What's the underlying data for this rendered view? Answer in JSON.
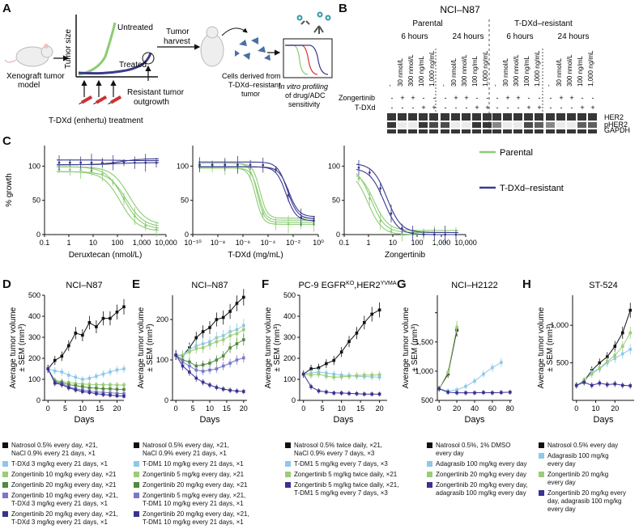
{
  "panel_labels": {
    "A": "A",
    "B": "B",
    "C": "C",
    "D": "D",
    "E": "E",
    "F": "F",
    "G": "G",
    "H": "H"
  },
  "colors": {
    "black": "#111111",
    "light_blue": "#8ec8ea",
    "light_green": "#9ccc78",
    "dark_green": "#4f8a3e",
    "med_purple": "#7a78c8",
    "dark_purple": "#3a3290",
    "parental": "#8ccc74",
    "resistant": "#3b3a8e",
    "untreated": "#8ccc74",
    "treated": "#3b3a8e"
  },
  "panelA": {
    "xenograft": "Xenograft tumor\nmodel",
    "tumor_size": "Tumor size",
    "untreated": "Untreated",
    "treated": "Treated",
    "resistant": "Resistant tumor\noutgrowth",
    "tdxd": "T-DXd (enhertu) treatment",
    "harvest": "Tumor\nharvest",
    "cells": "Cells derived from\nT-DXd–resistant\ntumor",
    "invitro": "In vitro profiling\nof drug/ADC\nsensitivity"
  },
  "panelB": {
    "title": "NCI–N87",
    "parental": "Parental",
    "resistant": "T-DXd–resistant",
    "h6": "6 hours",
    "h24": "24 hours",
    "lane_labels": [
      "-",
      "30 nmol/L",
      "300 nmol/L",
      "100 ng/mL",
      "1,000 ng/mL"
    ],
    "row_zongertinib": "Zongertinib",
    "row_tdxd": "T-DXd",
    "zong_signs": [
      "-",
      "+",
      "+",
      "-",
      "-"
    ],
    "tdxd_signs": [
      "-",
      "-",
      "-",
      "+",
      "+"
    ],
    "blot_labels": [
      "HER2",
      "pHER2",
      "GAPDH"
    ]
  },
  "panelC": {
    "ylabel": "% growth",
    "legend_parental": "Parental",
    "legend_resistant": "T-DXd–resistant",
    "plots": [
      {
        "xlabel": "Deruxtecan (nmol/L)",
        "xticks": [
          "0.1",
          "1",
          "10",
          "100",
          "1,000",
          "10,000"
        ],
        "yticks": [
          "0",
          "50",
          "100"
        ]
      },
      {
        "xlabel": "T-DXd (mg/mL)",
        "xticks": [
          "10⁻¹⁰",
          "10⁻⁸",
          "10⁻⁶",
          "10⁻⁴",
          "10⁻²",
          "10⁰"
        ],
        "yticks": [
          "0",
          "50",
          "100"
        ]
      },
      {
        "xlabel": "Zongertinib",
        "xticks": [
          "0.1",
          "1",
          "10",
          "100",
          "1,000",
          "10,000"
        ],
        "yticks": [
          "0",
          "50",
          "100"
        ]
      }
    ]
  },
  "chart_data": [
    {
      "type": "line",
      "panel": "C",
      "title": "",
      "xlabel": "Deruxtecan (nmol/L)",
      "ylabel": "% growth",
      "xscale": "log10",
      "xlim": [
        -1,
        4
      ],
      "ylim": [
        0,
        130
      ],
      "series": [
        {
          "name": "Parental",
          "top": 95,
          "bottom": 5,
          "log_ec50": 2.3,
          "hill": 1.2,
          "replicates": 4
        },
        {
          "name": "T-DXd–resistant",
          "top": 105,
          "bottom": 105,
          "log_ec50": 2,
          "hill": 1,
          "replicates": 3
        }
      ]
    },
    {
      "type": "line",
      "panel": "C",
      "title": "",
      "xlabel": "T-DXd (mg/mL)",
      "ylabel": "% growth",
      "xscale": "log10",
      "xlim": [
        -11,
        0
      ],
      "ylim": [
        0,
        130
      ],
      "series": [
        {
          "name": "Parental",
          "top": 100,
          "bottom": 15,
          "log_ec50": -5.3,
          "hill": 1.4,
          "replicates": 4
        },
        {
          "name": "T-DXd–resistant",
          "top": 102,
          "bottom": 20,
          "log_ec50": -2.7,
          "hill": 1,
          "replicates": 3
        }
      ]
    },
    {
      "type": "line",
      "panel": "C",
      "title": "",
      "xlabel": "Zongertinib",
      "ylabel": "% growth",
      "xscale": "log10",
      "xlim": [
        -1,
        4
      ],
      "ylim": [
        0,
        130
      ],
      "series": [
        {
          "name": "Parental",
          "top": 96,
          "bottom": 0,
          "log_ec50": 0.1,
          "hill": 1.5,
          "replicates": 3
        },
        {
          "name": "T-DXd–resistant",
          "top": 100,
          "bottom": 0,
          "log_ec50": 0.7,
          "hill": 1.5,
          "replicates": 2
        }
      ]
    },
    {
      "type": "line",
      "panel": "D",
      "title": "NCI–N87",
      "xlabel": "Days",
      "ylabel": "Average tumor volume ± SEM (mm³)",
      "xlim": [
        -1,
        22
      ],
      "ylim": [
        0,
        500
      ],
      "xticks": [
        0,
        5,
        10,
        15,
        20
      ],
      "yticks": [
        0,
        100,
        200,
        300,
        400,
        500
      ],
      "x": [
        0,
        2,
        4,
        6,
        8,
        10,
        12,
        14,
        16,
        18,
        20,
        22
      ],
      "series": [
        {
          "name": "Natrosol",
          "color": "black",
          "values": [
            150,
            190,
            210,
            260,
            320,
            310,
            370,
            350,
            390,
            390,
            420,
            445
          ]
        },
        {
          "name": "T-DXd 3",
          "color": "light_blue",
          "values": [
            150,
            140,
            135,
            120,
            110,
            100,
            105,
            115,
            125,
            135,
            145,
            150
          ]
        },
        {
          "name": "Zong 10",
          "color": "light_green",
          "values": [
            150,
            95,
            90,
            85,
            80,
            78,
            76,
            75,
            74,
            74,
            73,
            73
          ]
        },
        {
          "name": "Zong 20",
          "color": "dark_green",
          "values": [
            150,
            90,
            85,
            75,
            70,
            65,
            60,
            58,
            55,
            55,
            53,
            52
          ]
        },
        {
          "name": "Zong10+TDXd",
          "color": "med_purple",
          "values": [
            150,
            85,
            80,
            65,
            55,
            50,
            45,
            40,
            38,
            36,
            34,
            32
          ]
        },
        {
          "name": "Zong20+TDXd",
          "color": "dark_purple",
          "values": [
            150,
            82,
            75,
            60,
            50,
            42,
            38,
            32,
            28,
            25,
            22,
            20
          ]
        }
      ]
    },
    {
      "type": "line",
      "panel": "E",
      "title": "NCI–N87",
      "xlabel": "Days",
      "ylabel": "Average tumor volume ± SEM (mm³)",
      "xlim": [
        -1,
        21
      ],
      "ylim": [
        0,
        260
      ],
      "xticks": [
        0,
        5,
        10,
        15,
        20
      ],
      "yticks": [
        0,
        100,
        200
      ],
      "x": [
        0,
        2,
        4,
        6,
        8,
        10,
        12,
        14,
        16,
        18,
        20
      ],
      "series": [
        {
          "name": "Natrosol",
          "color": "black",
          "values": [
            112,
            110,
            130,
            155,
            170,
            180,
            200,
            205,
            220,
            240,
            255
          ]
        },
        {
          "name": "T-DM1 10",
          "color": "light_blue",
          "values": [
            112,
            112,
            125,
            135,
            140,
            145,
            155,
            160,
            170,
            175,
            185
          ]
        },
        {
          "name": "Zong 5",
          "color": "light_green",
          "values": [
            112,
            110,
            120,
            128,
            130,
            138,
            145,
            150,
            160,
            165,
            175
          ]
        },
        {
          "name": "Zong 20",
          "color": "dark_green",
          "values": [
            112,
            100,
            95,
            85,
            88,
            92,
            100,
            110,
            130,
            140,
            150
          ]
        },
        {
          "name": "Zong5+TDM1",
          "color": "med_purple",
          "values": [
            112,
            95,
            85,
            75,
            72,
            75,
            78,
            85,
            92,
            100,
            105
          ]
        },
        {
          "name": "Zong20+TDM1",
          "color": "dark_purple",
          "values": [
            112,
            85,
            70,
            55,
            45,
            38,
            32,
            28,
            25,
            23,
            22
          ]
        }
      ]
    },
    {
      "type": "line",
      "panel": "F",
      "title": "PC-9 EGFR KO, HER2 YVMA",
      "xlabel": "Days",
      "ylabel": "Average tumor volume ± SEM (mm³)",
      "xlim": [
        -1,
        22
      ],
      "ylim": [
        0,
        500
      ],
      "xticks": [
        0,
        5,
        10,
        15,
        20
      ],
      "yticks": [
        0,
        100,
        200,
        300,
        400,
        500
      ],
      "x": [
        0,
        2,
        4,
        6,
        8,
        10,
        12,
        14,
        16,
        18,
        20
      ],
      "series": [
        {
          "name": "Natrosol",
          "color": "black",
          "values": [
            125,
            150,
            155,
            175,
            190,
            230,
            280,
            320,
            370,
            410,
            430
          ]
        },
        {
          "name": "T-DM1 5",
          "color": "light_blue",
          "values": [
            125,
            130,
            135,
            130,
            125,
            120,
            118,
            115,
            113,
            112,
            110
          ]
        },
        {
          "name": "Zong 5",
          "color": "light_green",
          "values": [
            125,
            120,
            125,
            115,
            110,
            112,
            115,
            118,
            120,
            120,
            122
          ]
        },
        {
          "name": "Zong5+TDM1",
          "color": "dark_purple",
          "values": [
            125,
            65,
            45,
            40,
            35,
            35,
            33,
            32,
            30,
            30,
            30
          ]
        }
      ]
    },
    {
      "type": "line",
      "panel": "G",
      "title": "NCI–H2122",
      "xlabel": "Days",
      "ylabel": "Average tumor volume ± SEM (mm³)",
      "xlim": [
        -2,
        82
      ],
      "ylim": [
        0,
        1800
      ],
      "xticks": [
        0,
        20,
        40,
        60,
        80
      ],
      "yticks": [
        0,
        500,
        1000,
        1500
      ],
      "x": [
        0,
        10,
        20,
        30,
        40,
        50,
        60,
        70,
        80
      ],
      "series": [
        {
          "name": "Natrosol",
          "color": "black",
          "values": [
            200,
            450,
            1200,
            null,
            null,
            null,
            null,
            null,
            null
          ]
        },
        {
          "name": "Adagrasib",
          "color": "light_blue",
          "values": [
            200,
            160,
            180,
            240,
            330,
            450,
            560,
            650,
            null
          ]
        },
        {
          "name": "Zong 20",
          "color": "light_green",
          "values": [
            200,
            480,
            1250,
            null,
            null,
            null,
            null,
            null,
            null
          ]
        },
        {
          "name": "Zong+Adagrasib",
          "color": "dark_purple",
          "values": [
            200,
            140,
            130,
            130,
            130,
            135,
            130,
            135,
            140
          ]
        }
      ]
    },
    {
      "type": "line",
      "panel": "H",
      "title": "ST-524",
      "xlabel": "Days",
      "ylabel": "Average tumor volume ± SEM (mm³)",
      "xlim": [
        -2,
        30
      ],
      "ylim": [
        0,
        1400
      ],
      "xticks": [
        0,
        10,
        20
      ],
      "yticks": [
        500,
        1000
      ],
      "x": [
        0,
        4,
        8,
        12,
        16,
        20,
        24,
        28
      ],
      "series": [
        {
          "name": "Natrosol",
          "color": "black",
          "values": [
            200,
            260,
            400,
            500,
            580,
            720,
            900,
            1200
          ]
        },
        {
          "name": "Adagrasib",
          "color": "light_blue",
          "values": [
            200,
            250,
            380,
            420,
            500,
            560,
            620,
            680
          ]
        },
        {
          "name": "Zong 20",
          "color": "light_green",
          "values": [
            200,
            270,
            350,
            430,
            520,
            600,
            720,
            900
          ]
        },
        {
          "name": "Zong+Adagrasib",
          "color": "dark_purple",
          "values": [
            200,
            240,
            200,
            230,
            210,
            220,
            200,
            195
          ]
        }
      ]
    }
  ],
  "panel_titles": {
    "D": "NCI–N87",
    "E": "NCI–N87",
    "F_main": "PC-9 EGFR",
    "F_sup1": "KO",
    "F_sep": ",HER2",
    "F_sup2": "YVMA",
    "G": "NCI–H2122",
    "H": "ST-524"
  },
  "xticks": {
    "D": [
      "0",
      "5",
      "10",
      "15",
      "20"
    ],
    "E": [
      "0",
      "5",
      "10",
      "15",
      "20"
    ],
    "F": [
      "0",
      "5",
      "10",
      "15",
      "20"
    ],
    "G": [
      "0",
      "20",
      "40",
      "60",
      "80"
    ],
    "H": [
      "0",
      "10",
      "20"
    ]
  },
  "yticks": {
    "D": [
      "0",
      "100",
      "200",
      "300",
      "400",
      "500"
    ],
    "E": [
      "0",
      "100",
      "200"
    ],
    "F": [
      "0",
      "100",
      "200",
      "300",
      "400",
      "500"
    ],
    "G": [
      "500",
      "1,000",
      "1,500"
    ],
    "H": [
      "500",
      "1,000"
    ]
  },
  "common": {
    "days": "Days",
    "yl1": "Average tumor volume",
    "yl2": "± SEM (mm³)"
  },
  "legends": {
    "D": [
      {
        "color": "black",
        "text": "Natrosol 0.5% every day, ×21,\nNaCl 0.9% every 21 days, ×1"
      },
      {
        "color": "light_blue",
        "text": "T-DXd 3 mg/kg every 21 days, ×1"
      },
      {
        "color": "light_green",
        "text": "Zongertinib 10 mg/kg every day, ×21"
      },
      {
        "color": "dark_green",
        "text": "Zongertinib 20 mg/kg every day, ×21"
      },
      {
        "color": "med_purple",
        "text": "Zongertinib 10 mg/kg every day, ×21,\nT-DXd 3 mg/kg every 21 days, ×1"
      },
      {
        "color": "dark_purple",
        "text": "Zongertinib 20 mg/kg every day, ×21,\nT-DXd 3 mg/kg every 21 days, ×1"
      }
    ],
    "E": [
      {
        "color": "black",
        "text": "Natrosol 0.5% every day, ×21,\nNaCl 0.9% every 21 days, ×1"
      },
      {
        "color": "light_blue",
        "text": "T-DM1 10 mg/kg every 21 days, ×1"
      },
      {
        "color": "light_green",
        "text": "Zongertinib 5 mg/kg every day, ×21"
      },
      {
        "color": "dark_green",
        "text": "Zongertinib 20 mg/kg every day, ×21"
      },
      {
        "color": "med_purple",
        "text": "Zongertinib 5 mg/kg every day, ×21,\nT-DM1 10 mg/kg every 21 days, ×1"
      },
      {
        "color": "dark_purple",
        "text": "Zongertinib 20 mg/kg every day, ×21,\nT-DM1 10 mg/kg every 21 days, ×1"
      }
    ],
    "F": [
      {
        "color": "black",
        "text": "Natrosol 0.5% twice daily, ×21,\nNaCl 0.9% every 7 days, ×3"
      },
      {
        "color": "light_blue",
        "text": "T-DM1 5 mg/kg every 7 days, ×3"
      },
      {
        "color": "light_green",
        "text": "Zongertinib 5 mg/kg twice daily, ×21"
      },
      {
        "color": "dark_purple",
        "text": "Zongertinib 5 mg/kg twice daily, ×21,\nT-DM1 5 mg/kg every 7 days, ×3"
      }
    ],
    "G": [
      {
        "color": "black",
        "text": "Natrosol 0.5%, 1% DMSO\nevery day"
      },
      {
        "color": "light_blue",
        "text": "Adagrasib 100 mg/kg every day"
      },
      {
        "color": "light_green",
        "text": "Zongertinib 20 mg/kg every day"
      },
      {
        "color": "dark_purple",
        "text": "Zongertinib 20 mg/kg every day,\nadagrasib 100 mg/kg every day"
      }
    ],
    "H": [
      {
        "color": "black",
        "text": "Natrosol 0.5% every day"
      },
      {
        "color": "light_blue",
        "text": "Adagrasib 100 mg/kg\nevery day"
      },
      {
        "color": "light_green",
        "text": "Zongertinib 20 mg/kg\nevery day"
      },
      {
        "color": "dark_purple",
        "text": "Zongertinib 20 mg/kg every\nday, adagrasib 100 mg/kg\nevery day"
      }
    ]
  }
}
